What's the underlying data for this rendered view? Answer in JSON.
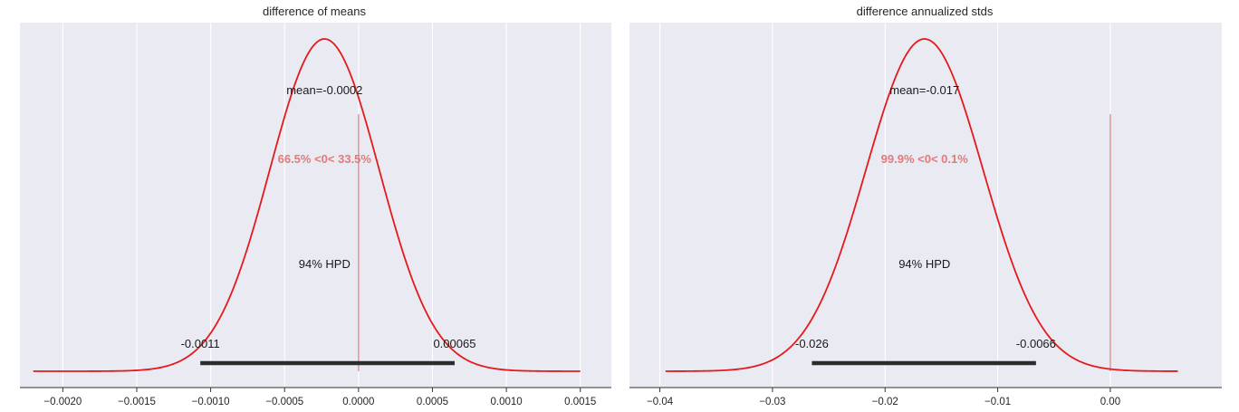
{
  "chart_data": [
    {
      "type": "area",
      "title": "difference of means",
      "xticks": [
        -0.002,
        -0.0015,
        -0.001,
        -0.0005,
        0,
        0.0005,
        0.001,
        0.0015
      ],
      "xtick_labels": [
        "−0.0020",
        "−0.0015",
        "−0.0010",
        "−0.0005",
        "0.0000",
        "0.0005",
        "0.0010",
        "0.0015"
      ],
      "xlim": [
        -0.00229,
        0.00171
      ],
      "grid": true,
      "density": {
        "mean": -0.00023,
        "sd": 0.00037,
        "range": [
          -0.0022,
          0.0015
        ]
      },
      "mean_label": "mean=-0.0002",
      "ref_value": 0,
      "ref_label": "66.5% <0< 33.5%",
      "hpd_label": "94% HPD",
      "hpd": [
        -0.00107,
        0.00065
      ],
      "hpd_low_label": "-0.0011",
      "hpd_high_label": "0.00065",
      "colors": {
        "curve": "#e41a1c",
        "ref": "#e07b7b",
        "hpd": "#2b2b2b",
        "background": "#eaeaf2",
        "grid": "#ffffff"
      }
    },
    {
      "type": "area",
      "title": "difference annualized stds",
      "xticks": [
        -0.04,
        -0.03,
        -0.02,
        -0.01,
        0
      ],
      "xtick_labels": [
        "−0.04",
        "−0.03",
        "−0.02",
        "−0.01",
        "0.00"
      ],
      "xlim": [
        -0.0427,
        0.0099
      ],
      "grid": true,
      "density": {
        "mean": -0.0165,
        "sd": 0.0052,
        "range": [
          -0.0395,
          0.006
        ]
      },
      "mean_label": "mean=-0.017",
      "ref_value": 0,
      "ref_label": "99.9% <0< 0.1%",
      "hpd_label": "94% HPD",
      "hpd": [
        -0.0265,
        -0.0066
      ],
      "hpd_low_label": "-0.026",
      "hpd_high_label": "-0.0066",
      "colors": {
        "curve": "#e41a1c",
        "ref": "#e07b7b",
        "hpd": "#2b2b2b",
        "background": "#eaeaf2",
        "grid": "#ffffff"
      }
    }
  ]
}
